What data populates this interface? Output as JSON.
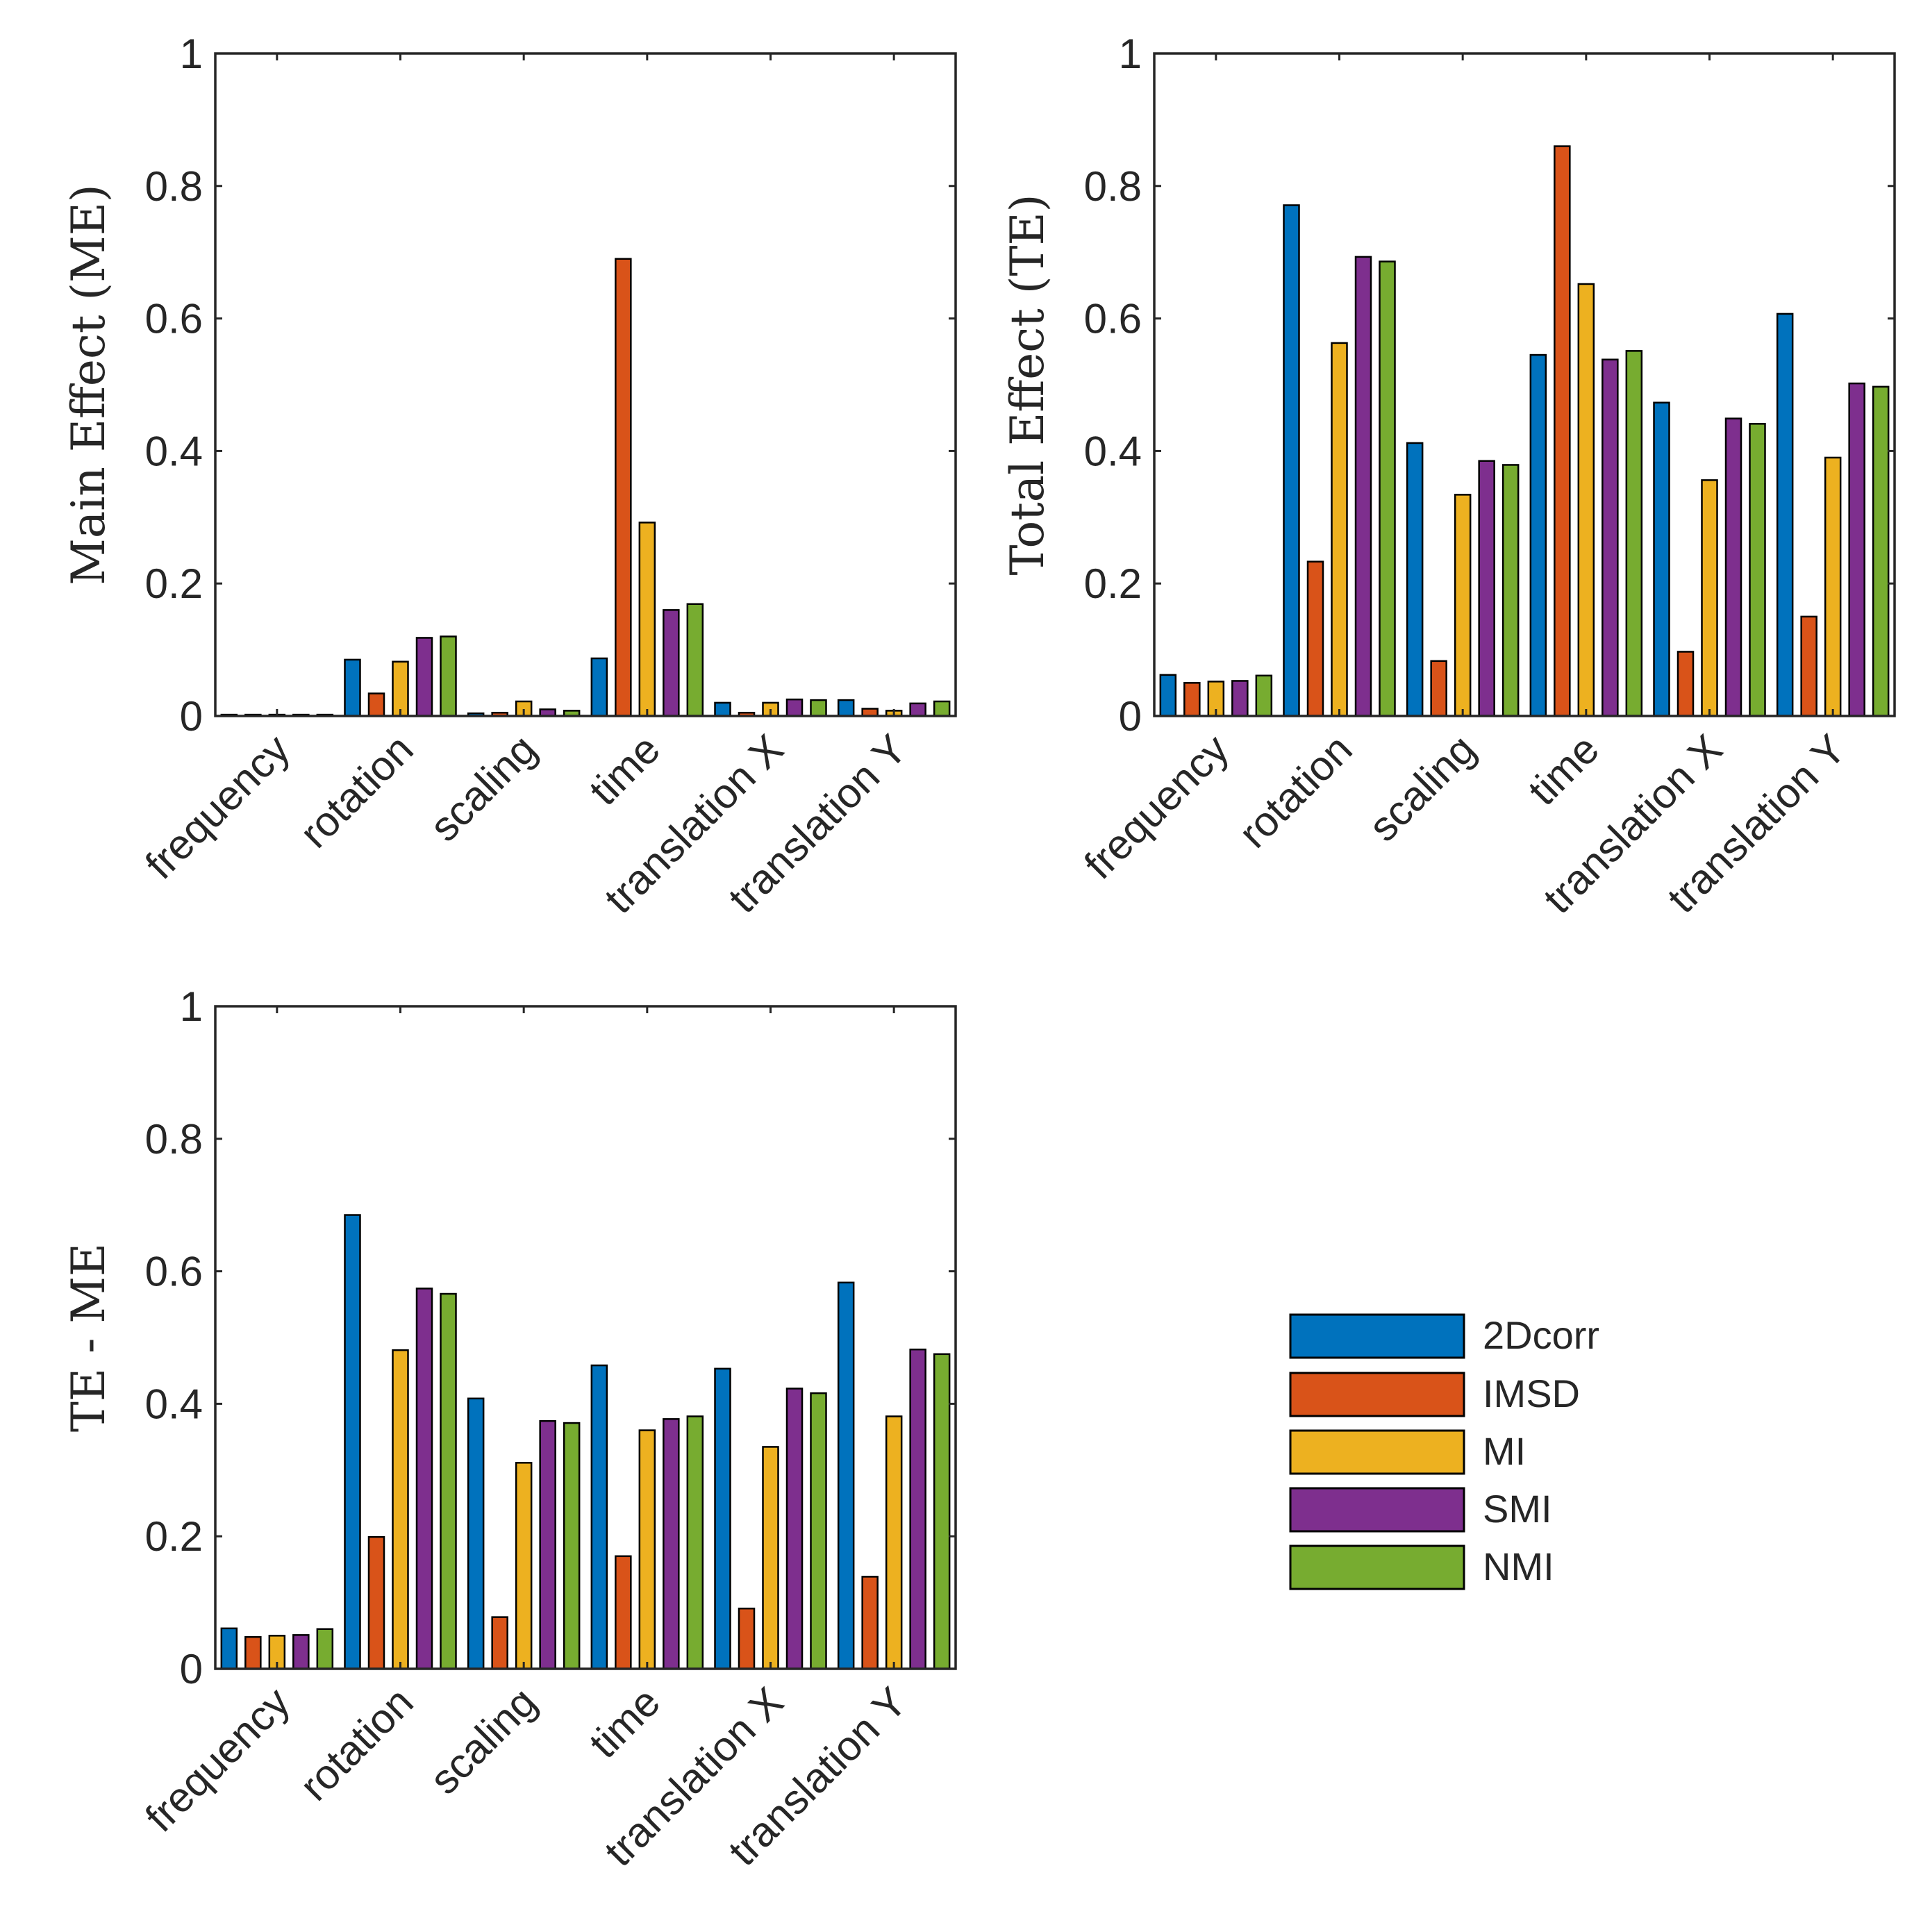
{
  "chart_data": [
    {
      "id": "main-effect",
      "type": "bar",
      "ylabel": "Main Effect (ME)",
      "ylim": [
        0,
        1
      ],
      "yticks": [
        "0",
        "0.2",
        "0.4",
        "0.6",
        "0.8",
        "1"
      ],
      "categories": [
        "frequency",
        "rotation",
        "scaling",
        "time",
        "translation X",
        "translation Y"
      ],
      "series": [
        {
          "name": "2Dcorr",
          "values": [
            0.002,
            0.085,
            0.004,
            0.087,
            0.02,
            0.024
          ]
        },
        {
          "name": "IMSD",
          "values": [
            0.002,
            0.034,
            0.005,
            0.69,
            0.005,
            0.011
          ]
        },
        {
          "name": "MI",
          "values": [
            0.002,
            0.082,
            0.022,
            0.292,
            0.02,
            0.008
          ]
        },
        {
          "name": "SMI",
          "values": [
            0.002,
            0.118,
            0.01,
            0.16,
            0.025,
            0.019
          ]
        },
        {
          "name": "NMI",
          "values": [
            0.002,
            0.12,
            0.008,
            0.169,
            0.024,
            0.022
          ]
        }
      ]
    },
    {
      "id": "total-effect",
      "type": "bar",
      "ylabel": "Total Effect (TE)",
      "ylim": [
        0,
        1
      ],
      "yticks": [
        "0",
        "0.2",
        "0.4",
        "0.6",
        "0.8",
        "1"
      ],
      "categories": [
        "frequency",
        "rotation",
        "scaling",
        "time",
        "translation X",
        "translation Y"
      ],
      "series": [
        {
          "name": "2Dcorr",
          "values": [
            0.062,
            0.771,
            0.412,
            0.545,
            0.473,
            0.607
          ]
        },
        {
          "name": "IMSD",
          "values": [
            0.05,
            0.233,
            0.083,
            0.86,
            0.097,
            0.15
          ]
        },
        {
          "name": "MI",
          "values": [
            0.052,
            0.563,
            0.334,
            0.652,
            0.356,
            0.39
          ]
        },
        {
          "name": "SMI",
          "values": [
            0.053,
            0.693,
            0.385,
            0.538,
            0.449,
            0.502
          ]
        },
        {
          "name": "NMI",
          "values": [
            0.061,
            0.686,
            0.379,
            0.551,
            0.441,
            0.497
          ]
        }
      ]
    },
    {
      "id": "te-minus-me",
      "type": "bar",
      "ylabel": "TE - ME",
      "ylim": [
        0,
        1
      ],
      "yticks": [
        "0",
        "0.2",
        "0.4",
        "0.6",
        "0.8",
        "1"
      ],
      "categories": [
        "frequency",
        "rotation",
        "scaling",
        "time",
        "translation X",
        "translation Y"
      ],
      "series": [
        {
          "name": "2Dcorr",
          "values": [
            0.061,
            0.685,
            0.408,
            0.458,
            0.453,
            0.583
          ]
        },
        {
          "name": "IMSD",
          "values": [
            0.048,
            0.199,
            0.078,
            0.17,
            0.091,
            0.139
          ]
        },
        {
          "name": "MI",
          "values": [
            0.05,
            0.481,
            0.311,
            0.36,
            0.335,
            0.381
          ]
        },
        {
          "name": "SMI",
          "values": [
            0.051,
            0.574,
            0.374,
            0.377,
            0.423,
            0.482
          ]
        },
        {
          "name": "NMI",
          "values": [
            0.06,
            0.566,
            0.371,
            0.381,
            0.416,
            0.475
          ]
        }
      ]
    }
  ],
  "legend": {
    "entries": [
      "2Dcorr",
      "IMSD",
      "MI",
      "SMI",
      "NMI"
    ]
  },
  "colors": {
    "2Dcorr": "#0072BD",
    "IMSD": "#D95319",
    "MI": "#EDB120",
    "SMI": "#7E2F8E",
    "NMI": "#77AC30",
    "axis": "#262626",
    "bar_edge": "#000000"
  }
}
